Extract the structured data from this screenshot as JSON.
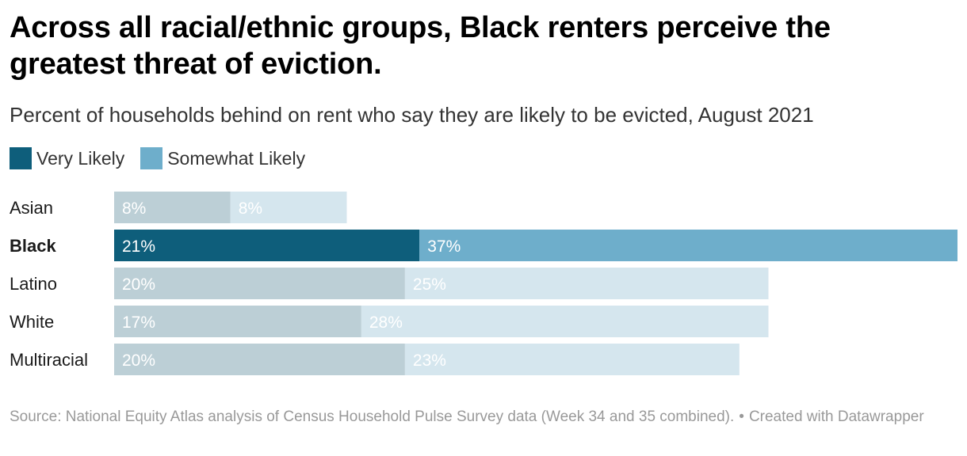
{
  "header": {
    "title": "Across all racial/ethnic groups, Black renters perceive the greatest threat of eviction.",
    "subtitle": "Percent of households behind on rent who say they are likely to be evicted, August 2021"
  },
  "legend": {
    "items": [
      {
        "label": "Very Likely",
        "color": "#0e5e7b"
      },
      {
        "label": "Somewhat Likely",
        "color": "#6eaecb"
      }
    ]
  },
  "colors": {
    "very_highlight": "#0e5e7b",
    "somewhat_highlight": "#6eaecb",
    "very_muted": "#bccfd6",
    "somewhat_muted": "#d5e6ee",
    "label_highlight": "#ffffff",
    "label_muted": "#ffffff"
  },
  "chart_data": {
    "type": "bar",
    "orientation": "horizontal",
    "stacked": true,
    "categories": [
      "Asian",
      "Black",
      "Latino",
      "White",
      "Multiracial"
    ],
    "highlighted_category": "Black",
    "series": [
      {
        "name": "Very Likely",
        "values": [
          8,
          21,
          20,
          17,
          20
        ]
      },
      {
        "name": "Somewhat Likely",
        "values": [
          8,
          37,
          25,
          28,
          23
        ]
      }
    ],
    "value_labels": [
      [
        "8%",
        "21%",
        "20%",
        "17%",
        "20%"
      ],
      [
        "8%",
        "37%",
        "25%",
        "28%",
        "23%"
      ]
    ],
    "xlim": [
      0,
      58
    ]
  },
  "footer": {
    "source": "Source: National Equity Atlas analysis of Census Household Pulse Survey data (Week 34 and 35 combined).",
    "credit": "Created with Datawrapper"
  }
}
